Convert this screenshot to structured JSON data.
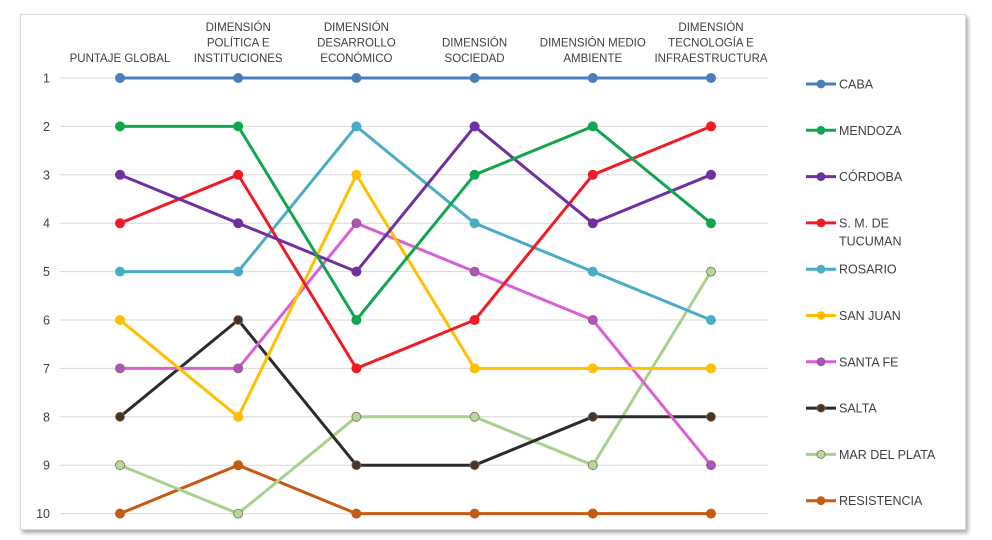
{
  "chart_data": {
    "type": "line",
    "title": "",
    "xlabel": "",
    "ylabel": "",
    "y_inverted": true,
    "ylim": [
      1,
      10
    ],
    "grid": true,
    "legend_position": "right",
    "yticks": [
      "1",
      "2",
      "3",
      "4",
      "5",
      "6",
      "7",
      "8",
      "9",
      "10"
    ],
    "categories": [
      [
        "PUNTAJE GLOBAL"
      ],
      [
        "DIMENSIÓN",
        "POLÍTICA E",
        "INSTITUCIONES"
      ],
      [
        "DIMENSIÓN",
        "DESARROLLO",
        "ECONÓMICO"
      ],
      [
        "DIMENSIÓN",
        "SOCIEDAD"
      ],
      [
        "DIMENSIÓN MEDIO",
        "AMBIENTE"
      ],
      [
        "DIMENSIÓN",
        "TECNOLOGÍA E",
        "INFRAESTRUCTURA"
      ]
    ],
    "series": [
      {
        "name": "CABA",
        "name_lines": [
          "CABA"
        ],
        "color": "#4a7ebb",
        "marker_fill": "#4a7ebb",
        "values": [
          1,
          1,
          1,
          1,
          1,
          1
        ]
      },
      {
        "name": "MENDOZA",
        "name_lines": [
          "MENDOZA"
        ],
        "color": "#12a550",
        "marker_fill": "#12a550",
        "values": [
          2,
          2,
          6,
          3,
          2,
          4
        ]
      },
      {
        "name": "CÓRDOBA",
        "name_lines": [
          "CÓRDOBA"
        ],
        "color": "#7030a0",
        "marker_fill": "#7030a0",
        "values": [
          3,
          4,
          5,
          2,
          4,
          3
        ]
      },
      {
        "name": "S. M. DE TUCUMAN",
        "name_lines": [
          "S. M.  DE",
          "TUCUMAN"
        ],
        "color": "#ee1c25",
        "marker_fill": "#ee1c25",
        "values": [
          4,
          3,
          7,
          6,
          3,
          2
        ]
      },
      {
        "name": "ROSARIO",
        "name_lines": [
          "ROSARIO"
        ],
        "color": "#4bacc6",
        "marker_fill": "#4bacc6",
        "values": [
          5,
          5,
          2,
          4,
          5,
          6
        ]
      },
      {
        "name": "SAN JUAN",
        "name_lines": [
          "SAN JUAN"
        ],
        "color": "#ffc000",
        "marker_fill": "#ffc000",
        "values": [
          6,
          8,
          3,
          7,
          7,
          7
        ]
      },
      {
        "name": "SANTA FE",
        "name_lines": [
          "SANTA FE"
        ],
        "color": "#d95fd6",
        "marker_fill": "#b44fc4",
        "values": [
          7,
          7,
          4,
          5,
          6,
          9
        ]
      },
      {
        "name": "SALTA",
        "name_lines": [
          "SALTA"
        ],
        "color": "#2b2b2b",
        "marker_fill": "#4a3325",
        "values": [
          8,
          6,
          9,
          9,
          8,
          8
        ]
      },
      {
        "name": "MAR DEL PLATA",
        "name_lines": [
          "MAR DEL PLATA"
        ],
        "color": "#a9d18e",
        "marker_fill": "#b5d99c",
        "values": [
          9,
          10,
          8,
          8,
          9,
          5
        ]
      },
      {
        "name": "RESISTENCIA",
        "name_lines": [
          "RESISTENCIA"
        ],
        "color": "#c55a11",
        "marker_fill": "#c55a11",
        "values": [
          10,
          9,
          10,
          10,
          10,
          10
        ]
      }
    ]
  }
}
